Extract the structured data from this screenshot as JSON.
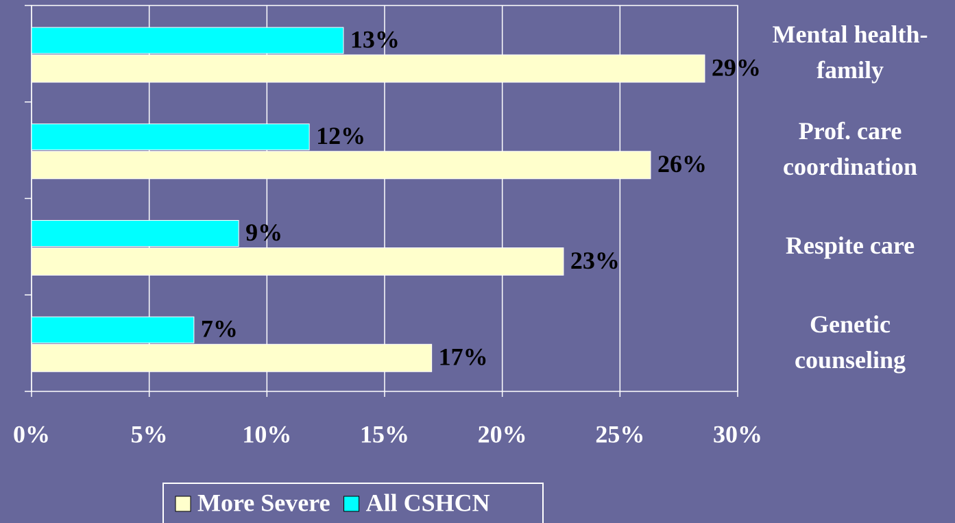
{
  "chart_data": {
    "type": "bar",
    "orientation": "horizontal",
    "categories": [
      "Mental health-family",
      "Prof. care coordination",
      "Respite care",
      "Genetic counseling"
    ],
    "series": [
      {
        "name": "More Severe",
        "color": "#ffffcc",
        "values": [
          28.6,
          26.3,
          22.6,
          17.0
        ],
        "value_labels": [
          "29%",
          "26%",
          "23%",
          "17%"
        ]
      },
      {
        "name": "All CSHCN",
        "color": "#00ffff",
        "values": [
          13.25,
          11.8,
          8.8,
          6.9
        ],
        "value_labels": [
          "13%",
          "12%",
          "9%",
          "7%"
        ]
      }
    ],
    "xlim": [
      0,
      30
    ],
    "xticks": [
      {
        "value": 0,
        "label": "0%"
      },
      {
        "value": 5,
        "label": "5%"
      },
      {
        "value": 10,
        "label": "10%"
      },
      {
        "value": 15,
        "label": "15%"
      },
      {
        "value": 20,
        "label": "20%"
      },
      {
        "value": 25,
        "label": "25%"
      },
      {
        "value": 30,
        "label": "30%"
      }
    ],
    "grid": true,
    "legend": "bottom"
  }
}
